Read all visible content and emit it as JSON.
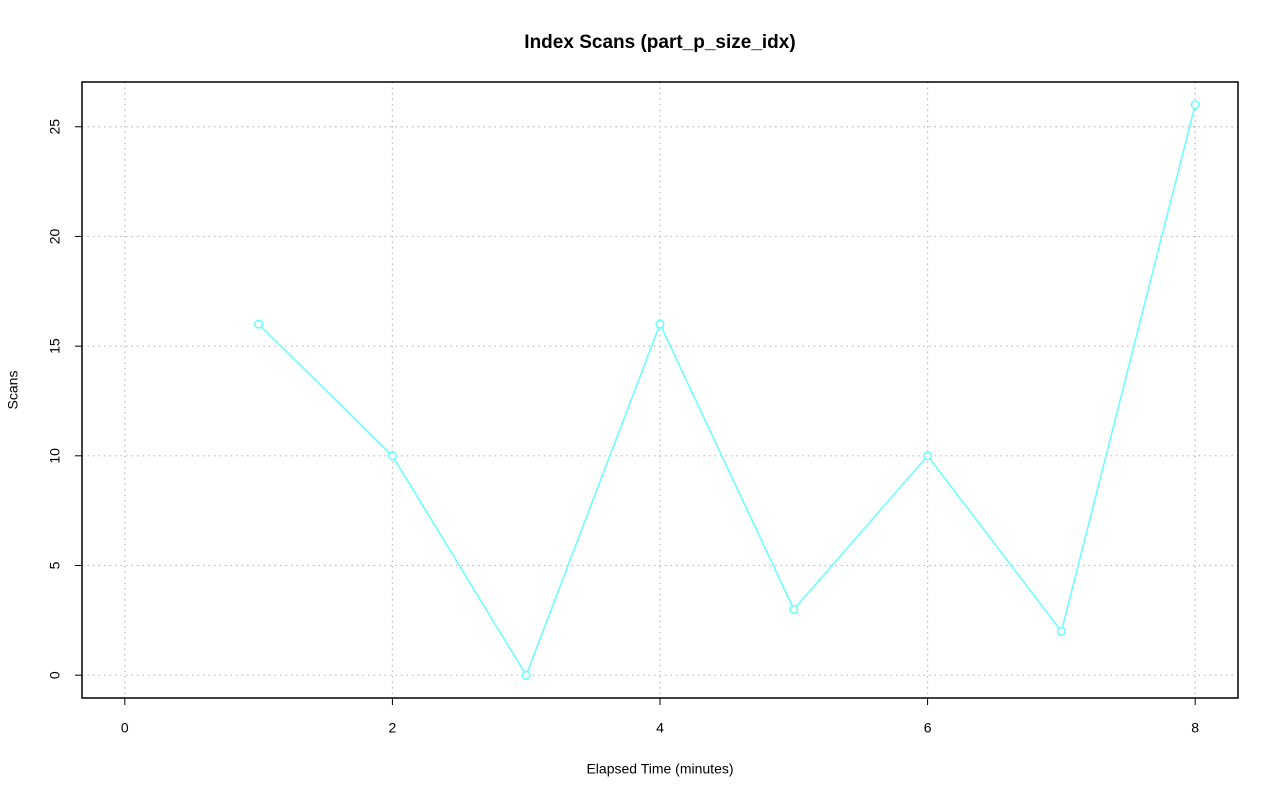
{
  "chart_data": {
    "type": "line",
    "title": "Index Scans (part_p_size_idx)",
    "x_label": "Elapsed Time (minutes)",
    "y_label": "Scans",
    "x": [
      1,
      2,
      3,
      4,
      5,
      6,
      7,
      8
    ],
    "series": [
      {
        "color": "#66ffff",
        "values": [
          16,
          10,
          0,
          16,
          3,
          10,
          2,
          26
        ]
      }
    ],
    "xlim": [
      -0.32,
      8.32
    ],
    "ylim": [
      -1.04,
      27.04
    ],
    "xticks": [
      0,
      2,
      4,
      6,
      8
    ],
    "yticks": [
      0,
      5,
      10,
      15,
      20,
      25
    ],
    "grid": true
  }
}
